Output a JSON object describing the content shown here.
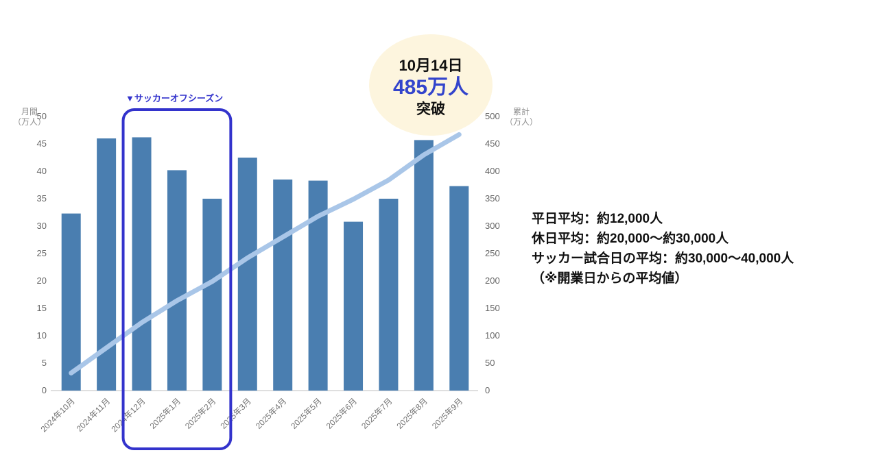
{
  "chart_data": {
    "type": "bar",
    "categories": [
      "2024年10月",
      "2024年11月",
      "2024年12月",
      "2025年1月",
      "2025年2月",
      "2025年3月",
      "2025年4月",
      "2025年5月",
      "2025年6月",
      "2025年7月",
      "2025年8月",
      "2025年9月"
    ],
    "series": [
      {
        "name": "monthly-visitors",
        "type": "bar",
        "axis": "left",
        "color": "#4A7EB0",
        "values": [
          32.3,
          46.0,
          46.2,
          40.2,
          35.0,
          42.5,
          38.5,
          38.3,
          30.8,
          35.0,
          45.7,
          37.3
        ]
      },
      {
        "name": "cumulative-visitors",
        "type": "line",
        "axis": "right",
        "color": "#A9C6E8",
        "values": [
          32,
          78,
          124,
          164,
          199,
          242,
          280,
          318,
          349,
          384,
          430,
          467
        ]
      }
    ],
    "left_axis": {
      "title_line1": "月間",
      "title_line2": "（万人）",
      "min": 0,
      "max": 50,
      "step": 5
    },
    "right_axis": {
      "title_line1": "累計",
      "title_line2": "（万人）",
      "min": 0,
      "max": 500,
      "step": 50
    },
    "grid": false,
    "legend_position": "none"
  },
  "annotations": {
    "offseason": {
      "label": "▼サッカーオフシーズン",
      "color": "#3333CC",
      "box_start_category": "2024年12月",
      "box_end_category": "2025年2月"
    },
    "milestone": {
      "date": "10月14日",
      "value": "485万人",
      "suffix": "突破",
      "value_color": "#3344CC",
      "bubble_color": "#FDF5DE"
    }
  },
  "side_text": {
    "lines": [
      "平日平均：約12,000人",
      "休日平均：約20,000～約30,000人",
      "サッカー試合日の平均：約30,000～40,000人",
      "（※開業日からの平均値）"
    ]
  }
}
